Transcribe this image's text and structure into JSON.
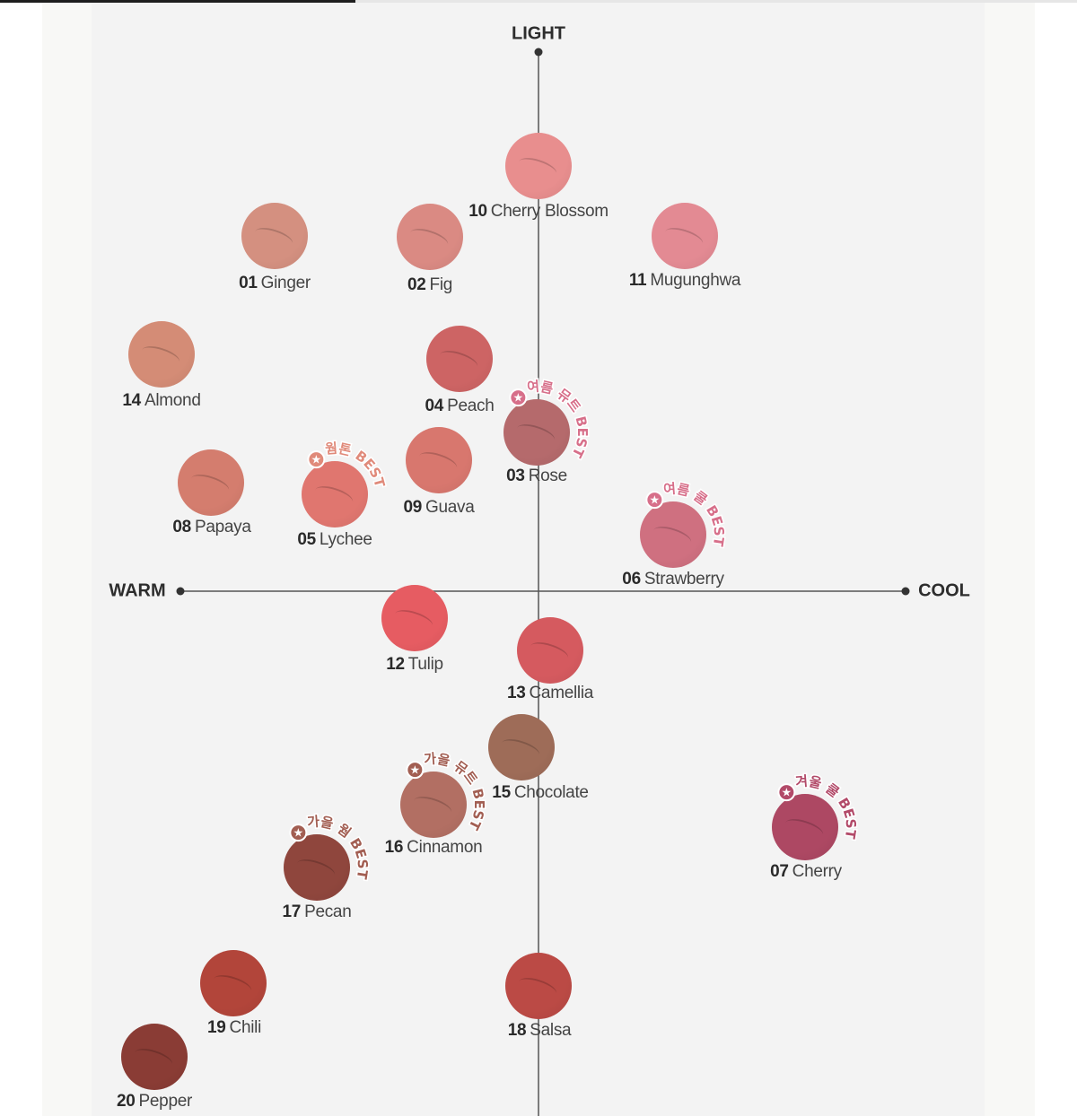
{
  "scroll_progress": 0.33,
  "axes": {
    "top": "LIGHT",
    "left": "WARM",
    "right": "COOL"
  },
  "colors": {
    "axis": "#555555",
    "summer": "#d76f8a",
    "warm": "#e08a7a",
    "autumn": "#a25e52",
    "winter": "#b24a69"
  },
  "shades": [
    {
      "num": "10",
      "name": "Cherry Blossom",
      "color": "#e88e8e"
    },
    {
      "num": "01",
      "name": "Ginger",
      "color": "#d49080"
    },
    {
      "num": "02",
      "name": "Fig",
      "color": "#da8a83"
    },
    {
      "num": "11",
      "name": "Mugunghwa",
      "color": "#e38a93"
    },
    {
      "num": "14",
      "name": "Almond",
      "color": "#d48c76"
    },
    {
      "num": "04",
      "name": "Peach",
      "color": "#cd6464"
    },
    {
      "num": "03",
      "name": "Rose",
      "color": "#b56a6c",
      "badge": {
        "text": "여름 뮤트 BEST",
        "tone": "summer"
      }
    },
    {
      "num": "09",
      "name": "Guava",
      "color": "#d8776e"
    },
    {
      "num": "08",
      "name": "Papaya",
      "color": "#d47d6e"
    },
    {
      "num": "05",
      "name": "Lychee",
      "color": "#e0766f",
      "badge": {
        "text": "웜톤 BEST",
        "tone": "warm"
      }
    },
    {
      "num": "06",
      "name": "Strawberry",
      "color": "#cf7080",
      "badge": {
        "text": "여름 쿨 BEST",
        "tone": "summer"
      }
    },
    {
      "num": "12",
      "name": "Tulip",
      "color": "#e65c62"
    },
    {
      "num": "13",
      "name": "Camellia",
      "color": "#d55a5f"
    },
    {
      "num": "15",
      "name": "Chocolate",
      "color": "#9e6c58"
    },
    {
      "num": "16",
      "name": "Cinnamon",
      "color": "#b26f63",
      "badge": {
        "text": "가을 뮤트 BEST",
        "tone": "autumn"
      }
    },
    {
      "num": "07",
      "name": "Cherry",
      "color": "#ad4863",
      "badge": {
        "text": "겨울 쿨 BEST",
        "tone": "winter"
      }
    },
    {
      "num": "17",
      "name": "Pecan",
      "color": "#8f463d",
      "badge": {
        "text": "가을 웜 BEST",
        "tone": "autumn"
      }
    },
    {
      "num": "19",
      "name": "Chili",
      "color": "#b2453a"
    },
    {
      "num": "18",
      "name": "Salsa",
      "color": "#bb4a45"
    },
    {
      "num": "20",
      "name": "Pepper",
      "color": "#8a3c35"
    }
  ]
}
